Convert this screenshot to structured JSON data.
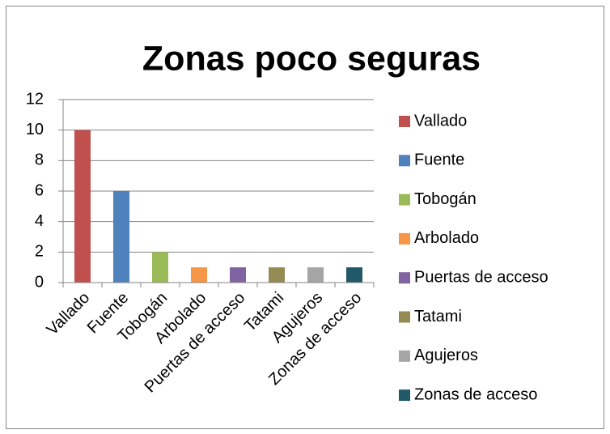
{
  "chart_data": {
    "type": "bar",
    "title": "Zonas poco seguras",
    "categories": [
      "Vallado",
      "Fuente",
      "Tobogán",
      "Arbolado",
      "Puertas de acceso",
      "Tatami",
      "Agujeros",
      "Zonas de acceso"
    ],
    "values": [
      10,
      6,
      2,
      1,
      1,
      1,
      1,
      1
    ],
    "colors": [
      "#c0504d",
      "#4f81bd",
      "#9bbb59",
      "#f79646",
      "#8064a2",
      "#948a54",
      "#a5a5a5",
      "#215968"
    ],
    "ylim": [
      0,
      12
    ],
    "yticks": [
      0,
      2,
      4,
      6,
      8,
      10,
      12
    ],
    "grid": true,
    "legend": "right"
  }
}
